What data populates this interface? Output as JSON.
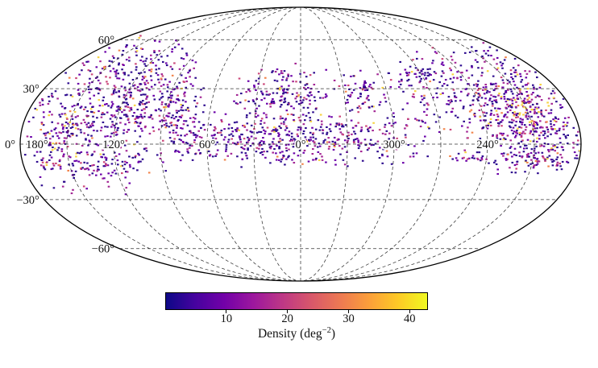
{
  "figure": {
    "background": "#ffffff"
  },
  "chart_data": {
    "type": "heatmap",
    "projection": "mollweide",
    "description": "All-sky source density map in Mollweide projection; colored patches show survey footprint density, white is unobserved sky",
    "colormap": {
      "name": "plasma",
      "stops": [
        "#0d0887",
        "#46039f",
        "#7201a8",
        "#9c179e",
        "#bd3786",
        "#d8576b",
        "#ed7953",
        "#fb9f3a",
        "#fdca26",
        "#f0f921"
      ]
    },
    "point_palette": [
      "#2d0a8e",
      "#6a00a8",
      "#a32694",
      "#cb4679",
      "#f2844b",
      "#f7d340"
    ],
    "colorbar": {
      "min": 0,
      "max": 43,
      "ticks": [
        10,
        20,
        30,
        40
      ],
      "label_prefix": "Density (deg",
      "label_sup": "−2",
      "label_suffix": ")"
    },
    "graticule": {
      "parallels_deg": [
        60,
        30,
        0,
        -30,
        -60
      ],
      "meridian_spacing_deg": 30
    },
    "lat_labels": [
      {
        "text": "60°",
        "lat": 60
      },
      {
        "text": "30°",
        "lat": 30
      },
      {
        "text": "0°",
        "lat": 0
      },
      {
        "text": "−30°",
        "lat": -30
      },
      {
        "text": "−60°",
        "lat": -60
      }
    ],
    "lon_labels": [
      {
        "text": "120°",
        "lon": 120
      },
      {
        "text": "60°",
        "lon": 60
      },
      {
        "text": "0°",
        "lon": 0
      },
      {
        "text": "300°",
        "lon": 300
      },
      {
        "text": "240°",
        "lon": 240
      },
      {
        "text": "180°",
        "lon": 180
      }
    ],
    "density_clusters": [
      {
        "u": -0.74,
        "v": 0.12,
        "su": 0.16,
        "sv": 0.28,
        "n": 380,
        "bright": 0.05
      },
      {
        "u": -0.6,
        "v": 0.45,
        "su": 0.13,
        "sv": 0.22,
        "n": 300,
        "bright": 0.04
      },
      {
        "u": -0.87,
        "v": 0.1,
        "su": 0.05,
        "sv": 0.18,
        "n": 60,
        "bright": 0.45
      },
      {
        "u": -0.42,
        "v": 0.28,
        "su": 0.05,
        "sv": 0.25,
        "n": 90,
        "bright": 0.02
      },
      {
        "u": -0.04,
        "v": 0.04,
        "su": 0.3,
        "sv": 0.12,
        "n": 520,
        "bright": 0.04
      },
      {
        "u": -0.07,
        "v": 0.38,
        "su": 0.11,
        "sv": 0.13,
        "n": 170,
        "bright": 0.03
      },
      {
        "u": 0.22,
        "v": 0.38,
        "su": 0.06,
        "sv": 0.1,
        "n": 70,
        "bright": 0.03
      },
      {
        "u": 0.38,
        "v": 0.52,
        "su": 0.05,
        "sv": 0.07,
        "n": 30,
        "bright": 0.0
      },
      {
        "u": 0.64,
        "v": 0.4,
        "su": 0.2,
        "sv": 0.2,
        "n": 380,
        "bright": 0.05
      },
      {
        "u": 0.83,
        "v": 0.1,
        "su": 0.13,
        "sv": 0.2,
        "n": 320,
        "bright": 0.1
      },
      {
        "u": 0.77,
        "v": 0.26,
        "su": 0.06,
        "sv": 0.1,
        "n": 50,
        "bright": 0.5
      },
      {
        "u": -0.7,
        "v": -0.14,
        "su": 0.08,
        "sv": 0.05,
        "n": 45,
        "bright": 0.02
      },
      {
        "u": 0.84,
        "v": -0.12,
        "su": 0.08,
        "sv": 0.06,
        "n": 55,
        "bright": 0.05
      },
      {
        "u": 0.6,
        "v": -0.09,
        "su": 0.05,
        "sv": 0.03,
        "n": 25,
        "bright": 0.0
      }
    ]
  }
}
